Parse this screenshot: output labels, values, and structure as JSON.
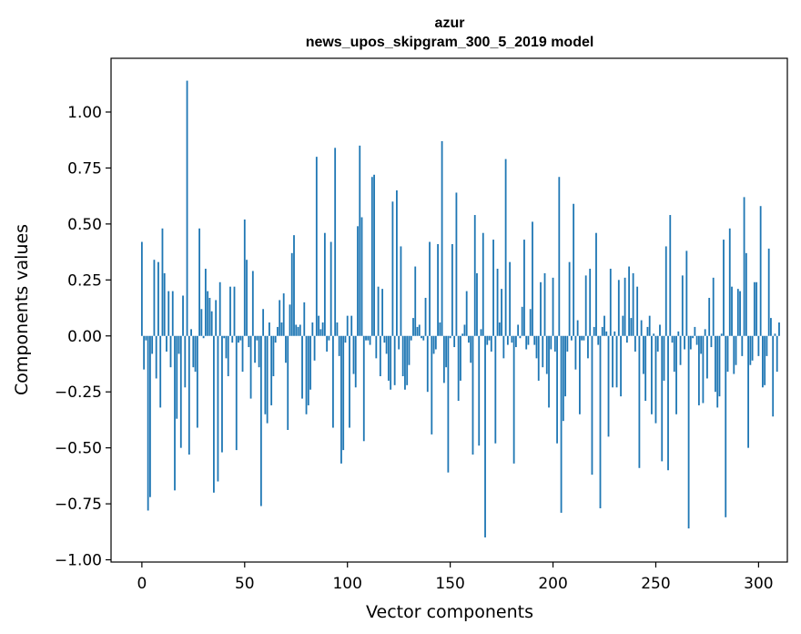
{
  "chart_data": {
    "type": "bar",
    "title": "azur",
    "subtitle": "news_upos_skipgram_300_5_2019 model",
    "xlabel": "Vector components",
    "ylabel": "Components values",
    "xlim": [
      -15,
      314
    ],
    "ylim": [
      -1.01,
      1.24
    ],
    "xticks": [
      0,
      50,
      100,
      150,
      200,
      250,
      300
    ],
    "yticks": [
      -1.0,
      -0.75,
      -0.5,
      -0.25,
      0.0,
      0.25,
      0.5,
      0.75,
      1.0
    ],
    "ytick_labels": [
      "−1.00",
      "−0.75",
      "−0.50",
      "−0.25",
      "0.00",
      "0.25",
      "0.50",
      "0.75",
      "1.00"
    ],
    "grid": false,
    "bar_color": "#1f77b4",
    "values": [
      0.42,
      -0.15,
      -0.02,
      -0.78,
      -0.72,
      -0.08,
      0.34,
      -0.19,
      0.33,
      -0.32,
      0.48,
      0.28,
      -0.07,
      0.2,
      -0.14,
      0.2,
      -0.69,
      -0.37,
      -0.08,
      -0.5,
      0.18,
      -0.23,
      1.14,
      -0.53,
      0.03,
      -0.14,
      -0.16,
      -0.41,
      0.48,
      0.12,
      -0.01,
      0.3,
      0.2,
      0.17,
      0.11,
      -0.7,
      0.16,
      -0.65,
      0.24,
      -0.52,
      -0.01,
      -0.1,
      -0.18,
      0.22,
      -0.03,
      0.22,
      -0.51,
      -0.03,
      -0.02,
      -0.16,
      0.52,
      0.34,
      -0.05,
      -0.28,
      0.29,
      -0.12,
      -0.02,
      -0.14,
      -0.76,
      0.12,
      -0.35,
      -0.39,
      0.06,
      -0.31,
      -0.18,
      -0.03,
      0.04,
      0.16,
      0.06,
      0.19,
      -0.12,
      -0.42,
      0.14,
      0.37,
      0.45,
      0.05,
      0.04,
      0.05,
      -0.28,
      0.15,
      -0.35,
      -0.31,
      -0.24,
      0.06,
      -0.11,
      0.8,
      0.09,
      0.03,
      0.06,
      0.46,
      -0.07,
      -0.02,
      0.42,
      -0.41,
      0.84,
      0.06,
      -0.09,
      -0.57,
      -0.51,
      -0.03,
      0.09,
      -0.41,
      0.09,
      -0.17,
      -0.23,
      0.49,
      0.85,
      0.53,
      -0.47,
      -0.02,
      -0.02,
      -0.04,
      0.71,
      0.72,
      -0.1,
      0.22,
      -0.18,
      0.21,
      -0.03,
      -0.08,
      -0.2,
      -0.24,
      0.6,
      -0.22,
      0.65,
      -0.06,
      0.4,
      -0.18,
      -0.24,
      -0.22,
      -0.13,
      -0.02,
      0.08,
      0.31,
      0.04,
      0.05,
      -0.01,
      -0.02,
      0.17,
      -0.25,
      0.42,
      -0.44,
      -0.08,
      -0.06,
      0.41,
      0.06,
      0.87,
      -0.21,
      -0.14,
      -0.61,
      -0.01,
      0.41,
      -0.05,
      0.64,
      -0.29,
      -0.2,
      0.01,
      0.05,
      0.2,
      -0.03,
      -0.12,
      -0.53,
      0.54,
      0.28,
      -0.49,
      0.03,
      0.46,
      -0.9,
      -0.04,
      -0.02,
      -0.07,
      0.43,
      -0.48,
      0.3,
      0.06,
      0.21,
      -0.1,
      0.79,
      -0.04,
      0.33,
      -0.03,
      -0.57,
      -0.05,
      0.05,
      -0.01,
      0.13,
      0.43,
      -0.06,
      -0.04,
      0.12,
      0.51,
      -0.04,
      -0.1,
      -0.2,
      0.24,
      -0.14,
      0.28,
      -0.17,
      -0.32,
      -0.06,
      0.26,
      -0.07,
      -0.48,
      0.71,
      -0.79,
      -0.38,
      -0.27,
      -0.07,
      0.33,
      -0.02,
      0.59,
      -0.15,
      0.07,
      -0.35,
      -0.02,
      -0.02,
      0.27,
      -0.1,
      0.3,
      -0.62,
      0.04,
      0.46,
      -0.04,
      -0.77,
      0.04,
      0.09,
      0.02,
      -0.45,
      0.3,
      -0.23,
      0.02,
      -0.23,
      0.25,
      -0.27,
      0.09,
      0.26,
      -0.03,
      0.31,
      0.08,
      0.28,
      -0.07,
      0.22,
      -0.59,
      0.07,
      -0.17,
      -0.29,
      0.04,
      0.09,
      -0.35,
      0.01,
      -0.39,
      -0.07,
      0.05,
      -0.56,
      -0.2,
      0.4,
      -0.6,
      0.54,
      -0.03,
      -0.16,
      -0.35,
      0.02,
      -0.13,
      0.27,
      -0.06,
      0.38,
      -0.86,
      -0.06,
      -0.01,
      0.04,
      -0.04,
      -0.31,
      -0.08,
      -0.3,
      0.03,
      -0.19,
      0.17,
      -0.05,
      0.26,
      -0.25,
      -0.32,
      -0.27,
      0.01,
      0.43,
      -0.81,
      -0.16,
      0.48,
      0.22,
      -0.17,
      -0.13,
      0.21,
      0.2,
      -0.09,
      0.62,
      0.37,
      -0.5,
      -0.13,
      -0.11,
      0.24,
      0.24,
      -0.09,
      0.58,
      -0.23,
      -0.22,
      -0.09,
      0.39,
      0.08,
      -0.36,
      0.01,
      -0.16,
      0.06
    ]
  }
}
